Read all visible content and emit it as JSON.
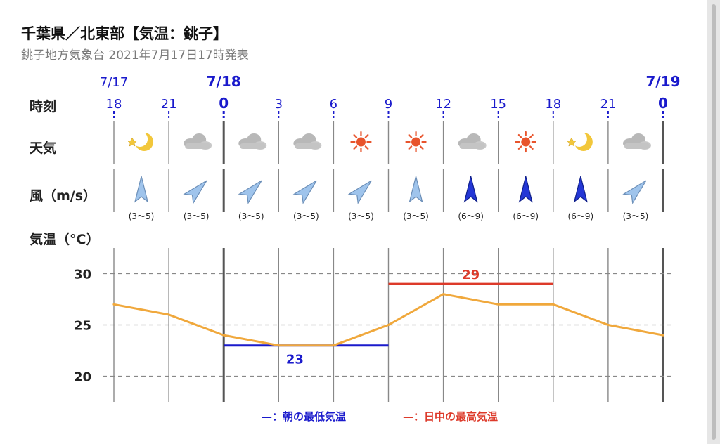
{
  "header": {
    "title": "千葉県／北東部【気温：銚子】",
    "subtitle": "銚子地方気象台 2021年7月17日17時発表"
  },
  "row_labels": {
    "time": "時刻",
    "weather": "天気",
    "wind": "風（m/s）",
    "temperature": "気温（°C）"
  },
  "dates": [
    {
      "label": "7/17",
      "column": 0,
      "bold": false
    },
    {
      "label": "7/18",
      "column": 2,
      "bold": true
    },
    {
      "label": "7/19",
      "column": 10,
      "bold": true
    }
  ],
  "hours": [
    "18",
    "21",
    "0",
    "3",
    "6",
    "9",
    "12",
    "15",
    "18",
    "21",
    "0"
  ],
  "weather": [
    "clear-night-icon",
    "cloudy-icon",
    "cloudy-icon",
    "cloudy-icon",
    "sunny-icon",
    "sunny-icon",
    "cloudy-icon",
    "sunny-icon",
    "clear-night-icon",
    "cloudy-icon"
  ],
  "wind": [
    {
      "direction": "S",
      "speed": "(3〜5)",
      "strength": "light"
    },
    {
      "direction": "SW",
      "speed": "(3〜5)",
      "strength": "light"
    },
    {
      "direction": "SW",
      "speed": "(3〜5)",
      "strength": "light"
    },
    {
      "direction": "SW",
      "speed": "(3〜5)",
      "strength": "light"
    },
    {
      "direction": "SW",
      "speed": "(3〜5)",
      "strength": "light"
    },
    {
      "direction": "S",
      "speed": "(3〜5)",
      "strength": "light"
    },
    {
      "direction": "S",
      "speed": "(6〜9)",
      "strength": "strong"
    },
    {
      "direction": "S",
      "speed": "(6〜9)",
      "strength": "strong"
    },
    {
      "direction": "S",
      "speed": "(6〜9)",
      "strength": "strong"
    },
    {
      "direction": "SW",
      "speed": "(3〜5)",
      "strength": "light"
    }
  ],
  "chart_data": {
    "type": "line",
    "x": [
      "18",
      "21",
      "0",
      "3",
      "6",
      "9",
      "12",
      "15",
      "18",
      "21",
      "0"
    ],
    "series": [
      {
        "values": [
          27,
          26,
          24,
          23,
          23,
          25,
          28,
          27,
          27,
          25,
          24
        ],
        "color": "#f0a83c"
      }
    ],
    "yticks": [
      30,
      25,
      20
    ],
    "ylim": [
      17.5,
      32.5
    ],
    "min_temp": {
      "value": 23,
      "label": "23",
      "from_column": 2,
      "to_column": 5,
      "color": "#1a1acc"
    },
    "max_temp": {
      "value": 29,
      "label": "29",
      "from_column": 5,
      "to_column": 8,
      "color": "#dd3a2a"
    },
    "grid": true
  },
  "legend": {
    "min_label": "—：朝の最低気温",
    "max_label": "—：日中の最高気温",
    "min_color": "#1a1acc",
    "max_color": "#dd3a2a"
  },
  "colors": {
    "date_blue": "#1a1acc",
    "arrow_light": "#9fc4ec",
    "arrow_strong": "#2437d6",
    "sun": "#e8542c",
    "moon": "#f2c73b",
    "cloud": "#b8b8b8"
  }
}
